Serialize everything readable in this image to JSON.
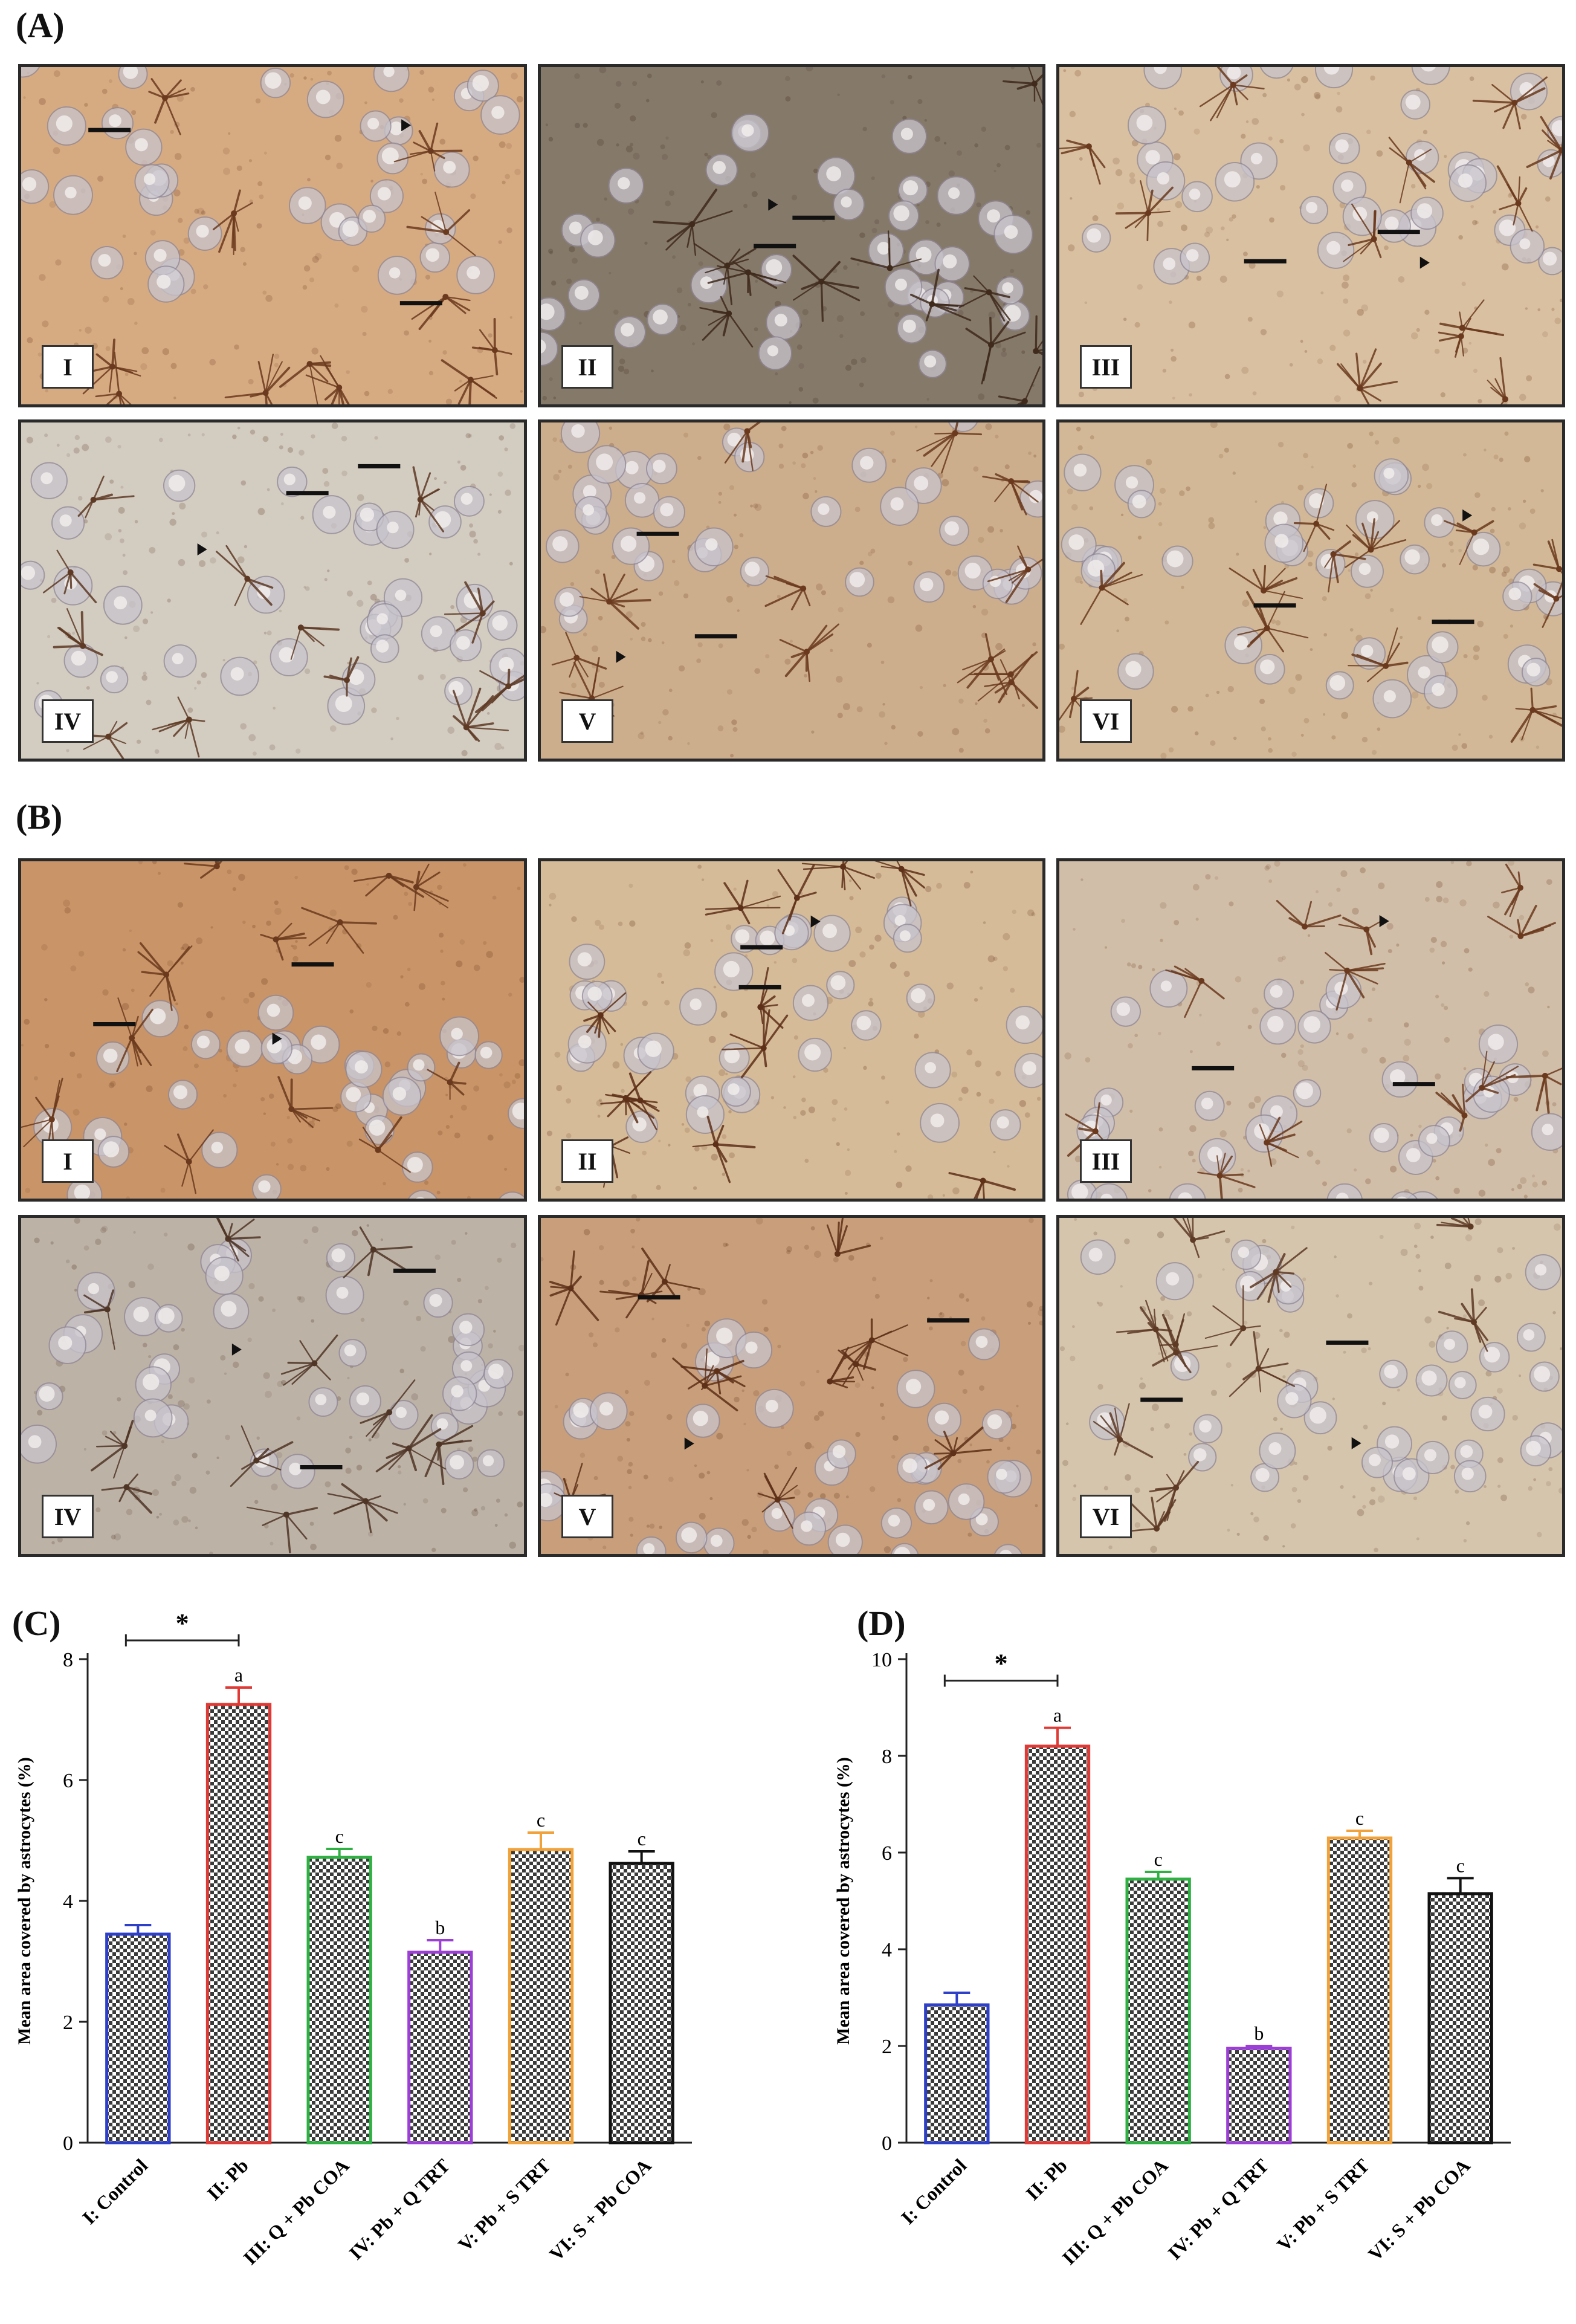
{
  "section_labels": {
    "A": "(A)",
    "B": "(B)",
    "C": "(C)",
    "D": "(D)"
  },
  "panels_A": [
    {
      "label": "I",
      "bg": "#d7ab82",
      "stain": "#6b3a1e"
    },
    {
      "label": "II",
      "bg": "#85796a",
      "stain": "#3f2a1c"
    },
    {
      "label": "III",
      "bg": "#d9c0a0",
      "stain": "#6b3a1e"
    },
    {
      "label": "IV",
      "bg": "#d3ccc1",
      "stain": "#5e3a25"
    },
    {
      "label": "V",
      "bg": "#cdae8c",
      "stain": "#6b3a1e"
    },
    {
      "label": "VI",
      "bg": "#d2b896",
      "stain": "#6b3a1e"
    }
  ],
  "panels_B": [
    {
      "label": "I",
      "bg": "#c99467",
      "stain": "#6b3a1e"
    },
    {
      "label": "II",
      "bg": "#d6bb98",
      "stain": "#5e3018"
    },
    {
      "label": "III",
      "bg": "#d1bea8",
      "stain": "#6b3a1e"
    },
    {
      "label": "IV",
      "bg": "#bdb2a6",
      "stain": "#4f3526"
    },
    {
      "label": "V",
      "bg": "#c99f7b",
      "stain": "#5e3018"
    },
    {
      "label": "VI",
      "bg": "#d6c5ad",
      "stain": "#5e3a25"
    }
  ],
  "chart_data": [
    {
      "type": "bar",
      "panel": "(C)",
      "ylabel": "Mean area covered by astrocytes (%)",
      "ylim": [
        0,
        8
      ],
      "yticks": [
        0,
        2,
        4,
        6,
        8
      ],
      "categories": [
        "I: Control",
        "II: Pb",
        "III: Q + Pb COA",
        "IV: Pb + Q TRT",
        "V: Pb + S TRT",
        "VI: S + Pb COA"
      ],
      "values": [
        3.45,
        7.25,
        4.72,
        3.15,
        4.85,
        4.62
      ],
      "errors": [
        0.15,
        0.28,
        0.14,
        0.2,
        0.28,
        0.2
      ],
      "letters": [
        "",
        "a",
        "c",
        "b",
        "c",
        "c"
      ],
      "colors": [
        "#2e3fc9",
        "#e03a36",
        "#2fb043",
        "#9c3fd6",
        "#f2a23a",
        "#111111"
      ],
      "significance": {
        "from": 0,
        "to": 1,
        "marker": "*"
      }
    },
    {
      "type": "bar",
      "panel": "(D)",
      "ylabel": "Mean area covered by astrocytes (%)",
      "ylim": [
        0,
        10
      ],
      "yticks": [
        0,
        2,
        4,
        6,
        8,
        10
      ],
      "categories": [
        "I: Control",
        "II: Pb",
        "III: Q + Pb COA",
        "IV: Pb + Q TRT",
        "V: Pb + S TRT",
        "VI: S + Pb COA"
      ],
      "values": [
        2.85,
        8.2,
        5.45,
        1.95,
        6.3,
        5.15
      ],
      "errors": [
        0.25,
        0.38,
        0.15,
        0.05,
        0.15,
        0.32
      ],
      "letters": [
        "",
        "a",
        "c",
        "b",
        "c",
        "c"
      ],
      "colors": [
        "#2e3fc9",
        "#e03a36",
        "#2fb043",
        "#9c3fd6",
        "#f2a23a",
        "#111111"
      ],
      "significance": {
        "from": 0,
        "to": 1,
        "marker": "*"
      }
    }
  ]
}
